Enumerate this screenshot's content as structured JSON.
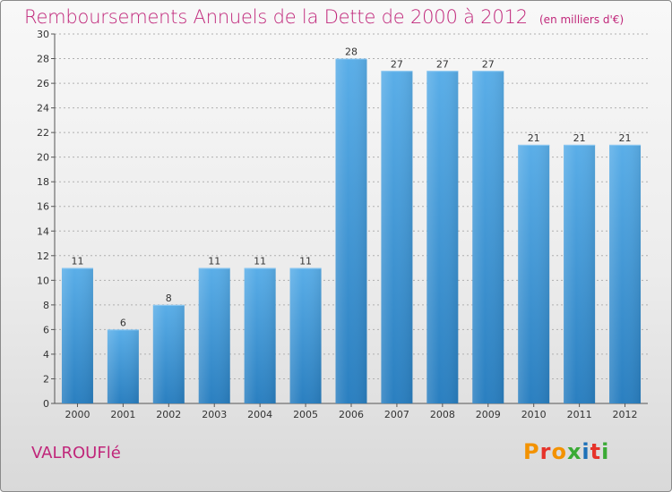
{
  "header": {
    "title": "Remboursements Annuels de la Dette de 2000 à 2012",
    "unit": "(en milliers d'€)"
  },
  "footer": {
    "place": "VALROUFlé",
    "logo": "Proxiti",
    "logo_colors": [
      "#f39200",
      "#e6332a",
      "#f39200",
      "#3aaa35",
      "#1d71b8",
      "#e6332a",
      "#3aaa35"
    ]
  },
  "colors": {
    "bar_top": "#5aaee8",
    "bar_bottom": "#2a7fc0",
    "title": "#c0267a",
    "grid": "#b0b0b0"
  },
  "chart_data": {
    "type": "bar",
    "title": "Remboursements Annuels de la Dette de 2000 à 2012",
    "xlabel": "",
    "ylabel": "",
    "categories": [
      "2000",
      "2001",
      "2002",
      "2003",
      "2004",
      "2005",
      "2006",
      "2007",
      "2008",
      "2009",
      "2010",
      "2011",
      "2012"
    ],
    "values": [
      11,
      6,
      8,
      11,
      11,
      11,
      28,
      27,
      27,
      27,
      21,
      21,
      21
    ],
    "ylim": [
      0,
      30
    ],
    "yticks": [
      0,
      2,
      4,
      6,
      8,
      10,
      12,
      14,
      16,
      18,
      20,
      22,
      24,
      26,
      28,
      30
    ],
    "grid": true,
    "data_labels": true
  }
}
